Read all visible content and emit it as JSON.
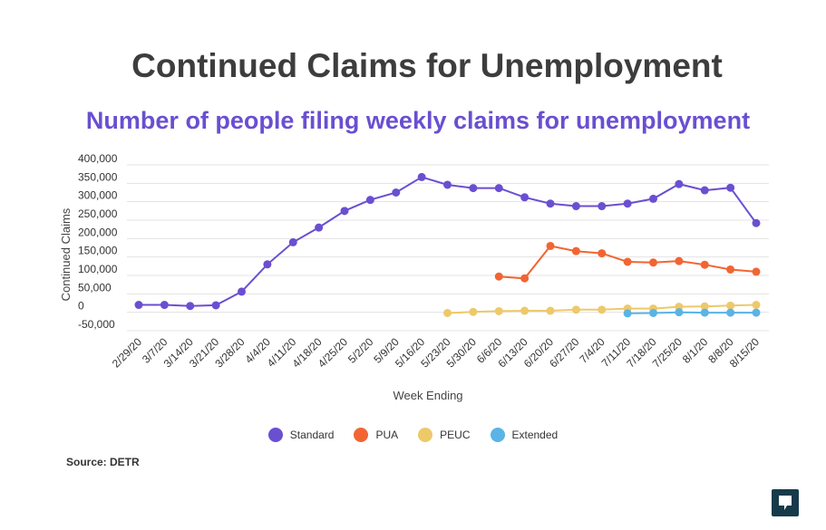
{
  "header": {
    "title": "Continued Claims for Unemployment",
    "subtitle": "Number of people filing weekly claims for unemployment"
  },
  "source": "Source: DETR",
  "chart_data": {
    "type": "line",
    "xlabel": "Week Ending",
    "ylabel": "Continued Claims",
    "ylim": [
      -50000,
      400000
    ],
    "yticks": [
      -50000,
      0,
      50000,
      100000,
      150000,
      200000,
      250000,
      300000,
      350000,
      400000
    ],
    "ytick_labels": [
      "-50,000",
      "0",
      "50,000",
      "100,000",
      "150,000",
      "200,000",
      "250,000",
      "300,000",
      "350,000",
      "400,000"
    ],
    "grid": true,
    "legend_position": "bottom",
    "categories": [
      "2/29/20",
      "3/7/20",
      "3/14/20",
      "3/21/20",
      "3/28/20",
      "4/4/20",
      "4/11/20",
      "4/18/20",
      "4/25/20",
      "5/2/20",
      "5/9/20",
      "5/16/20",
      "5/23/20",
      "5/30/20",
      "6/6/20",
      "6/13/20",
      "6/20/20",
      "6/27/20",
      "7/4/20",
      "7/11/20",
      "7/18/20",
      "7/25/20",
      "8/1/20",
      "8/8/20",
      "8/15/20"
    ],
    "series": [
      {
        "name": "Standard",
        "color": "#6a4fd1",
        "values": [
          20000,
          20000,
          17000,
          19000,
          56000,
          130000,
          190000,
          230000,
          275000,
          305000,
          325000,
          367000,
          346000,
          337000,
          337000,
          312000,
          295000,
          288000,
          288000,
          295000,
          308000,
          348000,
          331000,
          338000,
          242000
        ]
      },
      {
        "name": "PUA",
        "color": "#f26532",
        "values": [
          null,
          null,
          null,
          null,
          null,
          null,
          null,
          null,
          null,
          null,
          null,
          null,
          null,
          null,
          97000,
          92000,
          180000,
          166000,
          160000,
          137000,
          135000,
          139000,
          129000,
          116000,
          110000
        ]
      },
      {
        "name": "PEUC",
        "color": "#edc96a",
        "values": [
          null,
          null,
          null,
          null,
          null,
          null,
          null,
          null,
          null,
          null,
          null,
          null,
          -2000,
          1000,
          3000,
          4000,
          4000,
          7000,
          7000,
          10000,
          10000,
          15000,
          16000,
          18000,
          20000
        ]
      },
      {
        "name": "Extended",
        "color": "#5ab4e5",
        "values": [
          null,
          null,
          null,
          null,
          null,
          null,
          null,
          null,
          null,
          null,
          null,
          null,
          null,
          null,
          null,
          null,
          null,
          null,
          null,
          -3000,
          -2000,
          0,
          -1000,
          -1000,
          -1000
        ]
      }
    ]
  }
}
